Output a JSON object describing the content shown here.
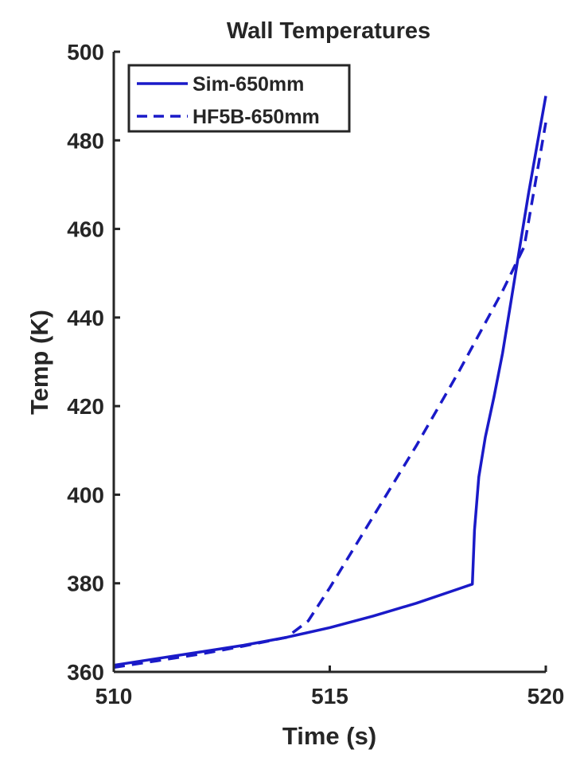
{
  "chart_data": {
    "type": "line",
    "title": "Wall Temperatures",
    "xlabel": "Time (s)",
    "ylabel": "Temp (K)",
    "xlim": [
      510,
      520
    ],
    "ylim": [
      360,
      500
    ],
    "xticks": [
      510,
      515,
      520
    ],
    "yticks": [
      360,
      380,
      400,
      420,
      440,
      460,
      480,
      500
    ],
    "grid": false,
    "legend_position": "top-left",
    "series": [
      {
        "name": "Sim-650mm",
        "style": "solid",
        "color": "#1a1ac8",
        "x": [
          510,
          511,
          512,
          513,
          514,
          515,
          516,
          517,
          518,
          518.3,
          518.35,
          518.45,
          518.6,
          518.8,
          519.0,
          519.2,
          519.4,
          519.6,
          519.8,
          520
        ],
        "y": [
          361.5,
          363.0,
          364.5,
          366.0,
          367.8,
          370.0,
          372.6,
          375.5,
          378.8,
          379.8,
          392,
          404,
          413,
          422,
          432,
          444,
          456,
          468,
          479,
          490
        ]
      },
      {
        "name": "HF5B-650mm",
        "style": "dashed",
        "color": "#1a1ac8",
        "x": [
          510,
          511,
          512,
          513,
          514,
          514.5,
          515,
          516,
          517,
          518,
          519,
          519.5,
          520
        ],
        "y": [
          361,
          362.5,
          364.0,
          365.8,
          367.8,
          371.5,
          379,
          395,
          411,
          428,
          446,
          456,
          484
        ]
      }
    ]
  }
}
